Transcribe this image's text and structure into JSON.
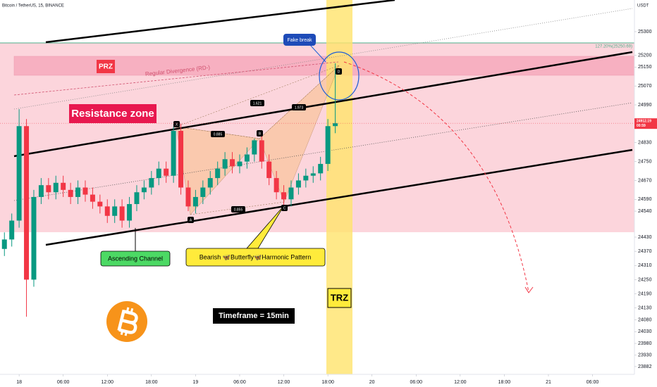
{
  "chart_data": {
    "type": "candlestick",
    "title": "Bitcoin / TetherUS, 15, BINANCE",
    "currency": "USDT",
    "up_color": "#089981",
    "down_color": "#f23645",
    "x": [
      -2,
      -1,
      0,
      1,
      2,
      3,
      4,
      5,
      6,
      7,
      8,
      9,
      10,
      11,
      12,
      13,
      14,
      15,
      16,
      17,
      18,
      19,
      20,
      21,
      22,
      23,
      24,
      25,
      26,
      27,
      28,
      29,
      30,
      31,
      32,
      33,
      34,
      35,
      36,
      37,
      38,
      39,
      40,
      41,
      42,
      43
    ],
    "open": [
      24380,
      24420,
      24500,
      24900,
      24250,
      24600,
      24650,
      24620,
      24660,
      24630,
      24600,
      24640,
      24610,
      24580,
      24560,
      24520,
      24560,
      24500,
      24570,
      24620,
      24640,
      24680,
      24720,
      24690,
      24880,
      24640,
      24560,
      24600,
      24640,
      24680,
      24720,
      24760,
      24730,
      24750,
      24780,
      24840,
      24750,
      24680,
      24620,
      24590,
      24640,
      24670,
      24690,
      24700,
      24740,
      24900
    ],
    "high": [
      24450,
      24530,
      24972,
      24930,
      24630,
      24680,
      24680,
      24690,
      24690,
      24660,
      24670,
      24670,
      24640,
      24610,
      24590,
      24590,
      24590,
      24600,
      24650,
      24670,
      24710,
      24750,
      24750,
      24898,
      24910,
      24670,
      24630,
      24670,
      24710,
      24750,
      24790,
      24790,
      24780,
      24810,
      24847,
      24870,
      24780,
      24710,
      24650,
      24670,
      24700,
      24720,
      24730,
      24770,
      24930,
      25166
    ],
    "low": [
      24350,
      24390,
      24470,
      24093,
      24220,
      24570,
      24590,
      24590,
      24600,
      24570,
      24570,
      24580,
      24550,
      24530,
      24490,
      24490,
      24470,
      24470,
      24540,
      24590,
      24610,
      24650,
      24660,
      24660,
      24610,
      24540,
      24530,
      24570,
      24610,
      24650,
      24690,
      24700,
      24700,
      24720,
      24750,
      24720,
      24650,
      24590,
      24560,
      24560,
      24610,
      24640,
      24660,
      24670,
      24710,
      24870
    ],
    "close": [
      24420,
      24500,
      24900,
      24250,
      24600,
      24650,
      24620,
      24660,
      24630,
      24600,
      24640,
      24610,
      24580,
      24560,
      24520,
      24560,
      24500,
      24570,
      24620,
      24640,
      24680,
      24720,
      24690,
      24880,
      24640,
      24560,
      24600,
      24640,
      24680,
      24720,
      24760,
      24730,
      24750,
      24780,
      24840,
      24750,
      24680,
      24620,
      24590,
      24640,
      24670,
      24690,
      24700,
      24740,
      24900,
      24912.19
    ],
    "countdown": "00:59",
    "xlim": [
      -2.6,
      83.7
    ],
    "xticks": [
      {
        "value": 0,
        "label": "18"
      },
      {
        "value": 6,
        "label": "06:00"
      },
      {
        "value": 12,
        "label": "12:00"
      },
      {
        "value": 18,
        "label": "18:00"
      },
      {
        "value": 24,
        "label": "19"
      },
      {
        "value": 30,
        "label": "06:00"
      },
      {
        "value": 36,
        "label": "12:00"
      },
      {
        "value": 42,
        "label": "18:00"
      },
      {
        "value": 48,
        "label": "20"
      },
      {
        "value": 54,
        "label": "06:00"
      },
      {
        "value": 60,
        "label": "12:00"
      },
      {
        "value": 66,
        "label": "18:00"
      },
      {
        "value": 72,
        "label": "21"
      },
      {
        "value": 78,
        "label": "06:00"
      }
    ],
    "ylim": [
      23855,
      25434
    ],
    "yticks": [
      25300,
      25200,
      25150,
      25070,
      24990,
      24830,
      24750,
      24670,
      24590,
      24540,
      24430,
      24370,
      24310,
      24250,
      24190,
      24130,
      24080,
      24030,
      23980,
      23930,
      23882
    ],
    "annotations": {
      "prz": "PRZ",
      "divergence": "Regular Divergence (RD-)",
      "resistance": "Resistance zone",
      "fake_break": "Fake break",
      "fib_level": "127.20%(25250.69)",
      "ratio_xd": "1.621",
      "ratio_bd": "1.973",
      "ratio_xb": "0.885",
      "ratio_ac": "0.855",
      "point_x": "X",
      "point_a": "A",
      "point_b": "B",
      "point_c": "C",
      "point_d": "D",
      "channel": "Ascending Channel",
      "pattern": "Bearish 🦋Butterfly🦋Harmonic Pattern",
      "trz": "TRZ",
      "timeframe": "Timeframe = 15min"
    }
  }
}
